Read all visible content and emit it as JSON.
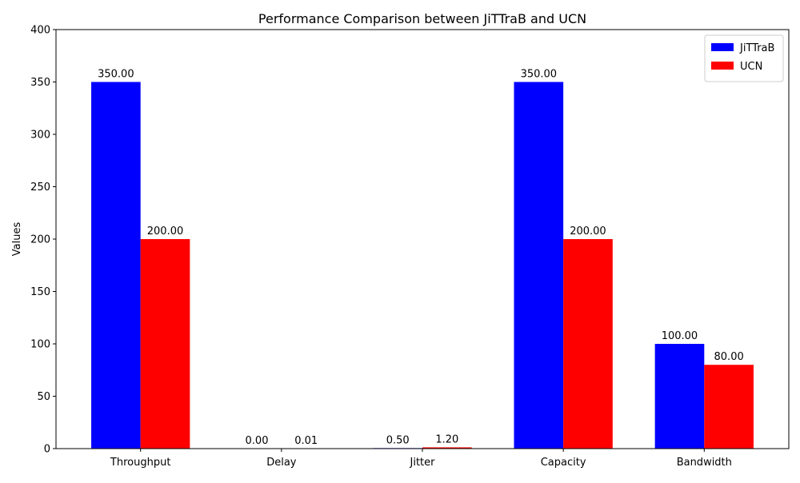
{
  "chart_data": {
    "type": "bar",
    "title": "Performance Comparison between JiTTraB and UCN",
    "xlabel": "",
    "ylabel": "Values",
    "categories": [
      "Throughput",
      "Delay",
      "Jitter",
      "Capacity",
      "Bandwidth"
    ],
    "ylim": [
      0,
      400
    ],
    "yticks": [
      0,
      50,
      100,
      150,
      200,
      250,
      300,
      350,
      400
    ],
    "legend_position": "top-right",
    "grid": false,
    "series": [
      {
        "name": "JiTTraB",
        "color": "#0000ff",
        "values": [
          350,
          0.001,
          0.5,
          350,
          100
        ],
        "labels": [
          "350.00",
          "0.00",
          "0.50",
          "350.00",
          "100.00"
        ]
      },
      {
        "name": "UCN",
        "color": "#ff0000",
        "values": [
          200,
          0.01,
          1.2,
          200,
          80
        ],
        "labels": [
          "200.00",
          "0.01",
          "1.20",
          "200.00",
          "80.00"
        ]
      }
    ]
  }
}
